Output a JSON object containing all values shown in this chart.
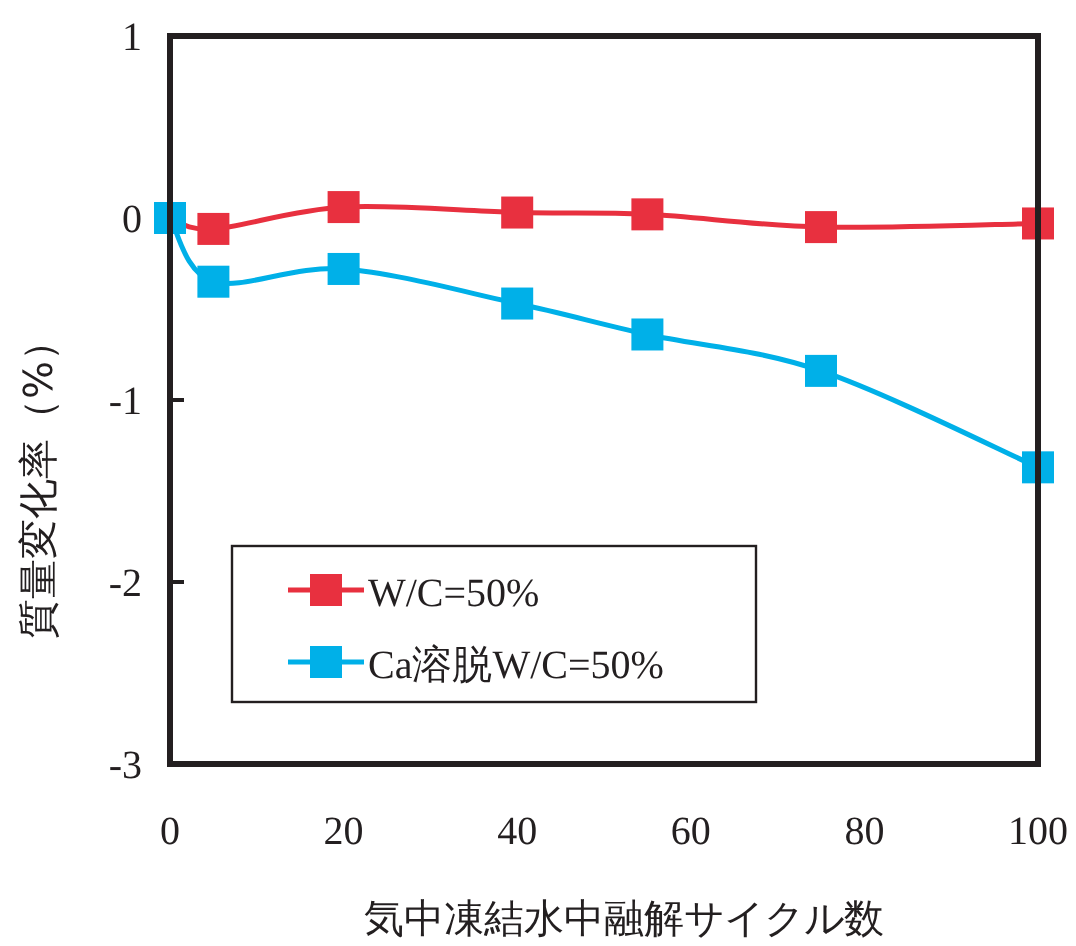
{
  "chart_data": {
    "type": "line",
    "xlabel": "気中凍結水中融解サイクル数",
    "ylabel": "質量変化率（%）",
    "x": [
      0,
      5,
      20,
      40,
      55,
      75,
      100
    ],
    "series": [
      {
        "name": "W/C=50%",
        "color": "#e8303f",
        "values": [
          0,
          -0.06,
          0.06,
          0.03,
          0.02,
          -0.05,
          -0.03
        ]
      },
      {
        "name": "Ca溶脱W/C=50%",
        "color": "#00b0e8",
        "values": [
          0,
          -0.35,
          -0.28,
          -0.47,
          -0.64,
          -0.84,
          -1.37
        ]
      }
    ],
    "xlim": [
      0,
      100
    ],
    "ylim": [
      -3,
      1
    ],
    "xticks": [
      0,
      20,
      40,
      60,
      80,
      100
    ],
    "yticks": [
      -3,
      -2,
      -1,
      0,
      1
    ],
    "marker": "square",
    "legend": "bottom left",
    "grid": false
  }
}
